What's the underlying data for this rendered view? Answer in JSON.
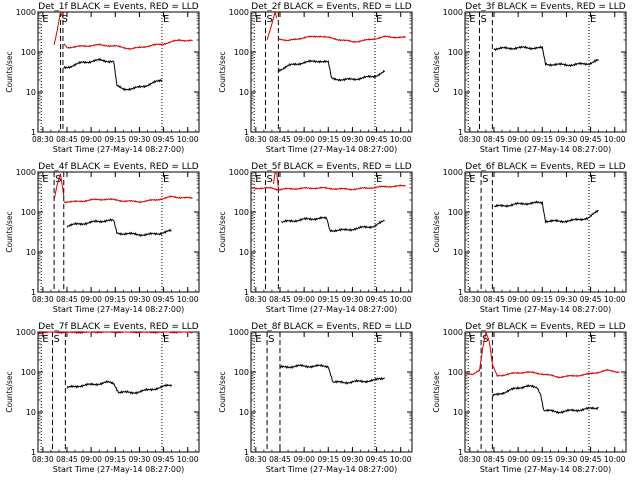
{
  "figure": {
    "ylabel": "Counts/sec",
    "xlabel": "Start Time (27-May-14 08:27:00)",
    "colors": {
      "events": "#000000",
      "lld": "#dd0000",
      "axes": "#000000"
    }
  },
  "chart_data": [
    {
      "type": "line",
      "title": "Det_1f BLACK = Events, RED = LLD",
      "xlabel": "Start Time (27-May-14 08:27:00)",
      "ylabel": "Counts/sec",
      "ylog": true,
      "ylim": [
        1,
        1000
      ],
      "xlim": [
        "08:27",
        "10:07"
      ],
      "xticks": [
        "08:30",
        "08:45",
        "09:00",
        "09:15",
        "09:30",
        "09:45",
        "10:00"
      ],
      "yticks": [
        "1",
        "10",
        "100",
        "1000"
      ],
      "markers": [
        {
          "time": "08:41",
          "style": "dashed",
          "label": "S"
        },
        {
          "time": "08:42:30",
          "style": "dashed",
          "label": ""
        },
        {
          "time": "08:29",
          "style": "dotted",
          "label": "E"
        },
        {
          "time": "09:44",
          "style": "dotted",
          "label": "E"
        }
      ],
      "series": [
        {
          "name": "LLD",
          "color": "#dd0000",
          "x": [
            "08:43",
            "08:45",
            "08:55",
            "09:05",
            "09:15",
            "09:25",
            "09:35",
            "09:45",
            "09:55",
            "10:03"
          ],
          "y": [
            160,
            130,
            140,
            150,
            140,
            120,
            140,
            160,
            200,
            190
          ]
        },
        {
          "name": "Events",
          "color": "#000000",
          "x": [
            "08:43",
            "08:48",
            "08:55",
            "09:05",
            "09:14",
            "09:16",
            "09:20",
            "09:26",
            "09:35",
            "09:44"
          ],
          "y": [
            40,
            45,
            55,
            62,
            58,
            14,
            12,
            12,
            15,
            20
          ]
        }
      ],
      "spike": {
        "x": [
          "08:37",
          "08:39",
          "08:41",
          "08:42"
        ],
        "y": [
          150,
          350,
          1000,
          800
        ]
      }
    },
    {
      "type": "line",
      "title": "Det_2f BLACK = Events, RED = LLD",
      "xlabel": "Start Time (27-May-14 08:27:00)",
      "ylabel": "Counts/sec",
      "ylog": true,
      "ylim": [
        1,
        1000
      ],
      "xlim": [
        "08:27",
        "10:07"
      ],
      "xticks": [
        "08:30",
        "08:45",
        "09:00",
        "09:15",
        "09:30",
        "09:45",
        "10:00"
      ],
      "yticks": [
        "1",
        "10",
        "100",
        "1000"
      ],
      "markers": [
        {
          "time": "08:36",
          "style": "dashed",
          "label": "S"
        },
        {
          "time": "08:44",
          "style": "dashed",
          "label": ""
        },
        {
          "time": "08:29",
          "style": "dotted",
          "label": "E"
        },
        {
          "time": "09:44",
          "style": "dotted",
          "label": "E"
        }
      ],
      "series": [
        {
          "name": "LLD",
          "color": "#dd0000",
          "x": [
            "08:44",
            "08:50",
            "09:00",
            "09:10",
            "09:20",
            "09:30",
            "09:40",
            "09:50",
            "10:03"
          ],
          "y": [
            220,
            190,
            230,
            250,
            210,
            180,
            200,
            240,
            230
          ]
        },
        {
          "name": "Events",
          "color": "#000000",
          "x": [
            "08:44",
            "08:50",
            "09:00",
            "09:10",
            "09:15",
            "09:17",
            "09:25",
            "09:35",
            "09:44",
            "09:50"
          ],
          "y": [
            35,
            45,
            55,
            60,
            55,
            22,
            20,
            22,
            25,
            32
          ]
        }
      ],
      "spike": {
        "x": [
          "08:37",
          "08:40",
          "08:42",
          "08:43"
        ],
        "y": [
          200,
          500,
          1000,
          700
        ]
      }
    },
    {
      "type": "line",
      "title": "Det_3f BLACK = Events, RED = LLD",
      "xlabel": "Start Time (27-May-14 08:27:00)",
      "ylabel": "Counts/sec",
      "ylog": true,
      "ylim": [
        1,
        1000
      ],
      "xlim": [
        "08:27",
        "10:07"
      ],
      "xticks": [
        "08:30",
        "08:45",
        "09:00",
        "09:15",
        "09:30",
        "09:45",
        "10:00"
      ],
      "yticks": [
        "1",
        "10",
        "100",
        "1000"
      ],
      "markers": [
        {
          "time": "08:36",
          "style": "dashed",
          "label": "S"
        },
        {
          "time": "08:44",
          "style": "dashed",
          "label": ""
        },
        {
          "time": "08:29",
          "style": "dotted",
          "label": "E"
        },
        {
          "time": "09:44",
          "style": "dotted",
          "label": "E"
        }
      ],
      "series": [
        {
          "name": "Events",
          "color": "#000000",
          "x": [
            "08:45",
            "08:55",
            "09:05",
            "09:15",
            "09:17",
            "09:25",
            "09:35",
            "09:44",
            "09:50"
          ],
          "y": [
            120,
            125,
            128,
            125,
            50,
            48,
            48,
            52,
            62
          ]
        }
      ]
    },
    {
      "type": "line",
      "title": "Det_4f BLACK = Events, RED = LLD",
      "xlabel": "Start Time (27-May-14 08:27:00)",
      "ylabel": "Counts/sec",
      "ylog": true,
      "ylim": [
        1,
        1000
      ],
      "xlim": [
        "08:27",
        "10:07"
      ],
      "xticks": [
        "08:30",
        "08:45",
        "09:00",
        "09:15",
        "09:30",
        "09:45",
        "10:00"
      ],
      "yticks": [
        "1",
        "10",
        "100",
        "1000"
      ],
      "markers": [
        {
          "time": "08:37",
          "style": "dashed",
          "label": "S"
        },
        {
          "time": "08:43",
          "style": "dashed",
          "label": ""
        },
        {
          "time": "08:29",
          "style": "dotted",
          "label": "E"
        },
        {
          "time": "09:44",
          "style": "dotted",
          "label": "E"
        }
      ],
      "series": [
        {
          "name": "LLD",
          "color": "#dd0000",
          "x": [
            "08:43",
            "08:50",
            "09:00",
            "09:10",
            "09:20",
            "09:30",
            "09:40",
            "09:50",
            "10:03"
          ],
          "y": [
            180,
            180,
            200,
            210,
            190,
            180,
            200,
            240,
            220
          ]
        },
        {
          "name": "Events",
          "color": "#000000",
          "x": [
            "08:45",
            "08:52",
            "09:00",
            "09:10",
            "09:14",
            "09:16",
            "09:25",
            "09:35",
            "09:44",
            "09:50"
          ],
          "y": [
            45,
            50,
            55,
            62,
            60,
            30,
            28,
            27,
            30,
            34
          ]
        }
      ],
      "spike": {
        "x": [
          "08:37",
          "08:39",
          "08:41",
          "08:43"
        ],
        "y": [
          200,
          500,
          900,
          250
        ]
      }
    },
    {
      "type": "line",
      "title": "Det_5f BLACK = Events, RED = LLD",
      "xlabel": "Start Time (27-May-14 08:27:00)",
      "ylabel": "Counts/sec",
      "ylog": true,
      "ylim": [
        1,
        1000
      ],
      "xlim": [
        "08:27",
        "10:07"
      ],
      "xticks": [
        "08:30",
        "08:45",
        "09:00",
        "09:15",
        "09:30",
        "09:45",
        "10:00"
      ],
      "yticks": [
        "1",
        "10",
        "100",
        "1000"
      ],
      "markers": [
        {
          "time": "08:36",
          "style": "dashed",
          "label": "S"
        },
        {
          "time": "08:44",
          "style": "dashed",
          "label": ""
        },
        {
          "time": "08:29",
          "style": "dotted",
          "label": "E"
        },
        {
          "time": "09:44",
          "style": "dotted",
          "label": "E"
        }
      ],
      "series": [
        {
          "name": "LLD",
          "color": "#dd0000",
          "x": [
            "08:27",
            "08:35",
            "08:40",
            "08:44",
            "08:50",
            "09:00",
            "09:10",
            "09:20",
            "09:30",
            "09:40",
            "09:50",
            "10:03"
          ],
          "y": [
            400,
            390,
            400,
            360,
            380,
            390,
            400,
            380,
            370,
            400,
            430,
            450
          ]
        },
        {
          "name": "Events",
          "color": "#000000",
          "x": [
            "08:46",
            "08:52",
            "09:00",
            "09:10",
            "09:14",
            "09:16",
            "09:25",
            "09:35",
            "09:44",
            "09:50"
          ],
          "y": [
            55,
            60,
            65,
            70,
            68,
            35,
            35,
            40,
            45,
            60
          ]
        }
      ],
      "spike": {
        "x": [
          "08:41",
          "08:42",
          "08:43",
          "08:44"
        ],
        "y": [
          500,
          1000,
          900,
          400
        ]
      }
    },
    {
      "type": "line",
      "title": "Det_6f BLACK = Events, RED = LLD",
      "xlabel": "Start Time (27-May-14 08:27:00)",
      "ylabel": "Counts/sec",
      "ylog": true,
      "ylim": [
        1,
        1000
      ],
      "xlim": [
        "08:27",
        "10:07"
      ],
      "xticks": [
        "08:30",
        "08:45",
        "09:00",
        "09:15",
        "09:30",
        "09:45",
        "10:00"
      ],
      "yticks": [
        "1",
        "10",
        "100",
        "1000"
      ],
      "markers": [
        {
          "time": "08:37",
          "style": "dashed",
          "label": "S"
        },
        {
          "time": "08:44",
          "style": "dashed",
          "label": ""
        },
        {
          "time": "08:29",
          "style": "dotted",
          "label": "E"
        },
        {
          "time": "09:44",
          "style": "dotted",
          "label": "E"
        }
      ],
      "series": [
        {
          "name": "Events",
          "color": "#000000",
          "x": [
            "08:45",
            "08:55",
            "09:05",
            "09:15",
            "09:17",
            "09:25",
            "09:35",
            "09:44",
            "09:50"
          ],
          "y": [
            135,
            150,
            165,
            170,
            60,
            58,
            62,
            72,
            110
          ]
        }
      ]
    },
    {
      "type": "line",
      "title": "Det_7f BLACK = Events, RED = LLD",
      "xlabel": "Start Time (27-May-14 08:27:00)",
      "ylabel": "Counts/sec",
      "ylog": true,
      "ylim": [
        1,
        1000
      ],
      "xlim": [
        "08:27",
        "10:07"
      ],
      "xticks": [
        "08:30",
        "08:45",
        "09:00",
        "09:15",
        "09:30",
        "09:45",
        "10:00"
      ],
      "yticks": [
        "1",
        "10",
        "100",
        "1000"
      ],
      "markers": [
        {
          "time": "08:36",
          "style": "dashed",
          "label": "S"
        },
        {
          "time": "08:44",
          "style": "dashed",
          "label": ""
        },
        {
          "time": "08:29",
          "style": "dotted",
          "label": "E"
        },
        {
          "time": "09:44",
          "style": "dotted",
          "label": "E"
        }
      ],
      "series": [
        {
          "name": "LLD",
          "color": "#dd0000",
          "x": [
            "08:27",
            "08:35",
            "08:45",
            "08:55",
            "09:05",
            "09:15",
            "09:25",
            "09:35",
            "09:45",
            "09:55",
            "10:03"
          ],
          "y": [
            950,
            1000,
            970,
            980,
            1000,
            990,
            1000,
            980,
            1000,
            990,
            1000
          ]
        },
        {
          "name": "Events",
          "color": "#000000",
          "x": [
            "08:45",
            "08:52",
            "09:00",
            "09:10",
            "09:14",
            "09:17",
            "09:25",
            "09:35",
            "09:44",
            "09:50"
          ],
          "y": [
            40,
            45,
            48,
            55,
            52,
            32,
            30,
            35,
            42,
            48
          ]
        }
      ]
    },
    {
      "type": "line",
      "title": "Det_8f BLACK = Events, RED = LLD",
      "xlabel": "Start Time (27-May-14 08:27:00)",
      "ylabel": "Counts/sec",
      "ylog": true,
      "ylim": [
        1,
        1000
      ],
      "xlim": [
        "08:27",
        "10:07"
      ],
      "xticks": [
        "08:30",
        "08:45",
        "09:00",
        "09:15",
        "09:30",
        "09:45",
        "10:00"
      ],
      "yticks": [
        "1",
        "10",
        "100",
        "1000"
      ],
      "markers": [
        {
          "time": "08:37",
          "style": "dashed",
          "label": "S"
        },
        {
          "time": "08:45",
          "style": "dashed",
          "label": ""
        },
        {
          "time": "08:29",
          "style": "dotted",
          "label": "E"
        },
        {
          "time": "09:44",
          "style": "dotted",
          "label": "E"
        }
      ],
      "series": [
        {
          "name": "Events",
          "color": "#000000",
          "x": [
            "08:45",
            "08:55",
            "09:05",
            "09:15",
            "09:18",
            "09:25",
            "09:35",
            "09:44",
            "09:50"
          ],
          "y": [
            130,
            140,
            140,
            140,
            55,
            55,
            58,
            62,
            72
          ]
        }
      ]
    },
    {
      "type": "line",
      "title": "Det_9f BLACK = Events, RED = LLD",
      "xlabel": "Start Time (27-May-14 08:27:00)",
      "ylabel": "Counts/sec",
      "ylog": true,
      "ylim": [
        1,
        1000
      ],
      "xlim": [
        "08:27",
        "10:07"
      ],
      "xticks": [
        "08:30",
        "08:45",
        "09:00",
        "09:15",
        "09:30",
        "09:45",
        "10:00"
      ],
      "yticks": [
        "1",
        "10",
        "100",
        "1000"
      ],
      "markers": [
        {
          "time": "08:37",
          "style": "dashed",
          "label": "S"
        },
        {
          "time": "08:44",
          "style": "dashed",
          "label": ""
        },
        {
          "time": "08:29",
          "style": "dotted",
          "label": "E"
        },
        {
          "time": "09:44",
          "style": "dotted",
          "label": "E"
        }
      ],
      "series": [
        {
          "name": "LLD",
          "color": "#dd0000",
          "x": [
            "08:27",
            "08:32",
            "08:36",
            "08:38",
            "08:40",
            "08:42",
            "08:44",
            "08:47",
            "08:55",
            "09:05",
            "09:15",
            "09:25",
            "09:35",
            "09:45",
            "09:55",
            "10:03"
          ],
          "y": [
            95,
            85,
            110,
            400,
            1000,
            600,
            150,
            80,
            90,
            100,
            90,
            75,
            80,
            90,
            110,
            100
          ]
        },
        {
          "name": "Events",
          "color": "#000000",
          "x": [
            "08:44",
            "08:50",
            "08:58",
            "09:05",
            "09:12",
            "09:14",
            "09:16",
            "09:25",
            "09:35",
            "09:44",
            "09:50"
          ],
          "y": [
            25,
            30,
            38,
            45,
            40,
            28,
            11,
            10,
            11,
            12,
            13
          ]
        }
      ]
    }
  ]
}
